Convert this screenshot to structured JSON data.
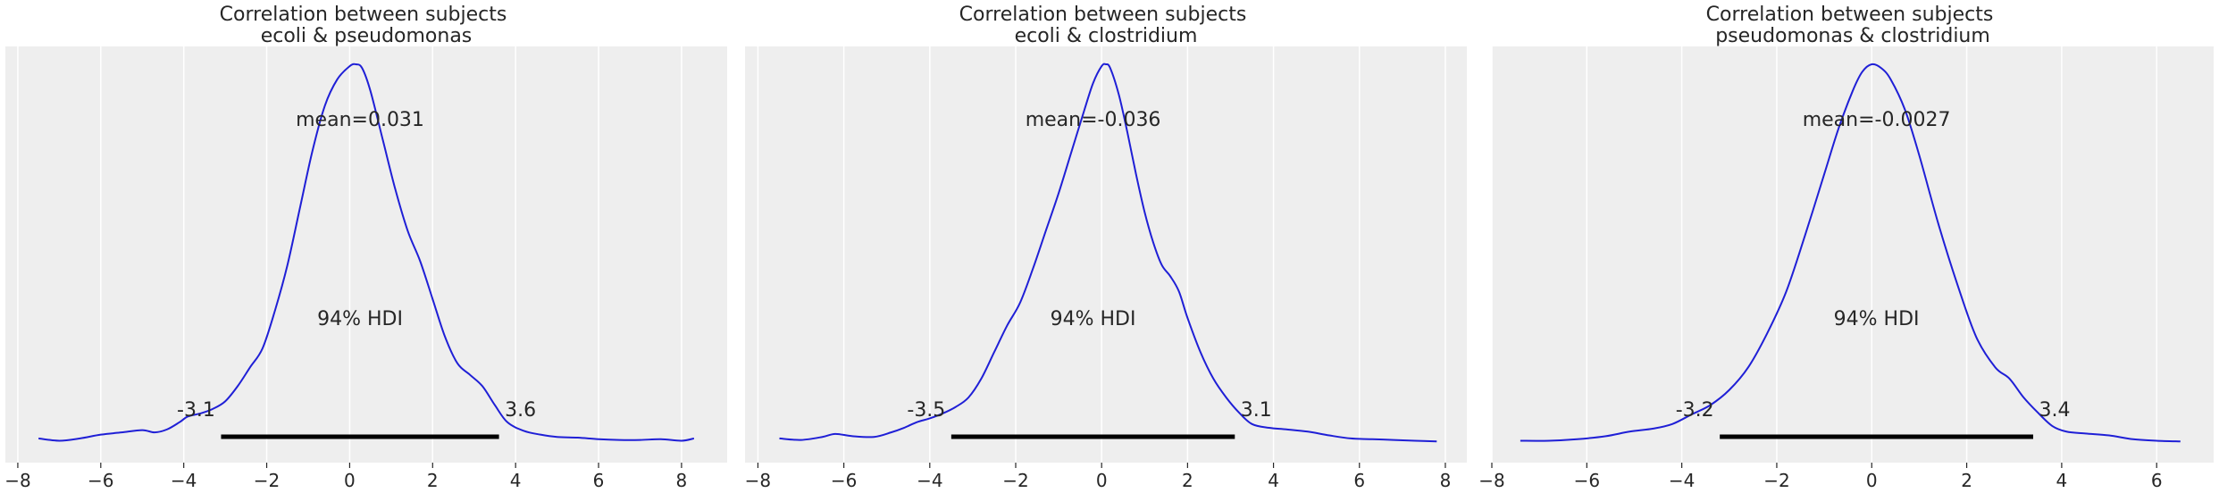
{
  "chart_data": [
    {
      "type": "line",
      "title": "Correlation between subjects\necoli & pseudomonas",
      "xlim": [
        -8.3,
        9.1
      ],
      "xticks": [
        -8,
        -6,
        -4,
        -2,
        0,
        2,
        4,
        6,
        8
      ],
      "xtick_labels": [
        "−8",
        "−6",
        "−4",
        "−2",
        "0",
        "2",
        "4",
        "6",
        "8"
      ],
      "grid": true,
      "series": [
        {
          "color": "#1f1fd6",
          "x": [
            -7.5,
            -7.0,
            -6.5,
            -6.0,
            -5.5,
            -5.0,
            -4.7,
            -4.4,
            -4.1,
            -3.9,
            -3.6,
            -3.3,
            -3.0,
            -2.7,
            -2.4,
            -2.1,
            -1.8,
            -1.5,
            -1.2,
            -0.9,
            -0.6,
            -0.3,
            0.0,
            0.15,
            0.3,
            0.5,
            0.8,
            1.1,
            1.4,
            1.7,
            2.0,
            2.3,
            2.6,
            2.9,
            3.2,
            3.5,
            3.8,
            4.2,
            4.6,
            5.0,
            5.5,
            6.0,
            6.5,
            7.0,
            7.5,
            8.0,
            8.3
          ],
          "y": [
            0.012,
            0.006,
            0.012,
            0.022,
            0.028,
            0.034,
            0.028,
            0.036,
            0.055,
            0.07,
            0.078,
            0.09,
            0.11,
            0.15,
            0.2,
            0.25,
            0.35,
            0.47,
            0.62,
            0.77,
            0.89,
            0.96,
            0.995,
            1.0,
            0.99,
            0.93,
            0.8,
            0.67,
            0.56,
            0.48,
            0.38,
            0.28,
            0.21,
            0.18,
            0.15,
            0.1,
            0.055,
            0.032,
            0.022,
            0.016,
            0.014,
            0.01,
            0.008,
            0.008,
            0.01,
            0.006,
            0.012
          ]
        }
      ],
      "annotations": {
        "mean": "mean=0.031",
        "hdi_label": "94% HDI",
        "hdi": [
          -3.1,
          3.6
        ],
        "hdi_low_label": "-3.1",
        "hdi_high_label": "3.6"
      }
    },
    {
      "type": "line",
      "title": "Correlation between subjects\necoli & clostridium",
      "xlim": [
        -8.3,
        8.5
      ],
      "xticks": [
        -8,
        -6,
        -4,
        -2,
        0,
        2,
        4,
        6,
        8
      ],
      "xtick_labels": [
        "−8",
        "−6",
        "−4",
        "−2",
        "0",
        "2",
        "4",
        "6",
        "8"
      ],
      "grid": true,
      "series": [
        {
          "color": "#1f1fd6",
          "x": [
            -7.5,
            -7.0,
            -6.5,
            -6.2,
            -5.8,
            -5.3,
            -4.9,
            -4.6,
            -4.3,
            -4.0,
            -3.7,
            -3.4,
            -3.1,
            -2.8,
            -2.5,
            -2.2,
            -1.9,
            -1.6,
            -1.3,
            -1.0,
            -0.7,
            -0.4,
            -0.2,
            0.0,
            0.1,
            0.2,
            0.4,
            0.6,
            0.8,
            1.0,
            1.2,
            1.4,
            1.6,
            1.8,
            2.0,
            2.3,
            2.6,
            2.9,
            3.2,
            3.5,
            3.9,
            4.3,
            4.8,
            5.3,
            5.8,
            6.3,
            6.8,
            7.3,
            7.8
          ],
          "y": [
            0.012,
            0.008,
            0.016,
            0.024,
            0.018,
            0.016,
            0.028,
            0.04,
            0.055,
            0.065,
            0.078,
            0.095,
            0.12,
            0.17,
            0.24,
            0.31,
            0.37,
            0.46,
            0.56,
            0.66,
            0.77,
            0.88,
            0.95,
            0.995,
            1.0,
            0.99,
            0.92,
            0.82,
            0.71,
            0.61,
            0.53,
            0.47,
            0.44,
            0.4,
            0.33,
            0.24,
            0.17,
            0.12,
            0.08,
            0.05,
            0.04,
            0.036,
            0.03,
            0.02,
            0.012,
            0.01,
            0.008,
            0.006,
            0.004
          ]
        }
      ],
      "annotations": {
        "mean": "mean=-0.036",
        "hdi_label": "94% HDI",
        "hdi": [
          -3.5,
          3.1
        ],
        "hdi_low_label": "-3.5",
        "hdi_high_label": "3.1"
      }
    },
    {
      "type": "line",
      "title": "Correlation between subjects\npseudomonas & clostridium",
      "xlim": [
        -8.0,
        7.2
      ],
      "xticks": [
        -8,
        -6,
        -4,
        -2,
        0,
        2,
        4,
        6
      ],
      "xtick_labels": [
        "−8",
        "−6",
        "−4",
        "−2",
        "0",
        "2",
        "4",
        "6"
      ],
      "grid": true,
      "series": [
        {
          "color": "#1f1fd6",
          "x": [
            -7.4,
            -6.8,
            -6.2,
            -5.6,
            -5.1,
            -4.6,
            -4.2,
            -3.8,
            -3.4,
            -3.0,
            -2.6,
            -2.2,
            -1.8,
            -1.4,
            -1.0,
            -0.7,
            -0.4,
            -0.2,
            0.0,
            0.2,
            0.4,
            0.7,
            1.0,
            1.4,
            1.8,
            2.2,
            2.6,
            2.9,
            3.2,
            3.5,
            3.8,
            4.1,
            4.5,
            5.0,
            5.5,
            6.0,
            6.5
          ],
          "y": [
            0.006,
            0.006,
            0.01,
            0.018,
            0.03,
            0.038,
            0.05,
            0.075,
            0.1,
            0.14,
            0.2,
            0.29,
            0.4,
            0.55,
            0.71,
            0.83,
            0.93,
            0.98,
            1.0,
            0.99,
            0.96,
            0.88,
            0.76,
            0.58,
            0.42,
            0.28,
            0.2,
            0.17,
            0.12,
            0.08,
            0.045,
            0.03,
            0.025,
            0.02,
            0.01,
            0.006,
            0.004
          ]
        }
      ],
      "annotations": {
        "mean": "mean=-0.0027",
        "hdi_label": "94% HDI",
        "hdi": [
          -3.2,
          3.4
        ],
        "hdi_low_label": "-3.2",
        "hdi_high_label": "3.4"
      }
    }
  ]
}
